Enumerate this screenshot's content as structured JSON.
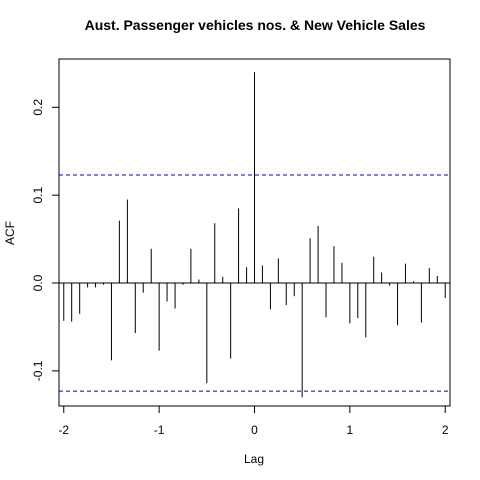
{
  "chart_data": {
    "type": "bar",
    "title": "Aust. Passenger vehicles nos. & New Vehicle Sales",
    "xlabel": "Lag",
    "ylabel": "ACF",
    "xlim": [
      -2.05,
      2.05
    ],
    "ylim": [
      -0.14,
      0.255
    ],
    "x_ticks": [
      -2,
      -1,
      0,
      1,
      2
    ],
    "y_ticks": [
      -0.1,
      0.0,
      0.1,
      0.2
    ],
    "x_tick_labels": [
      "-2",
      "-1",
      "0",
      "1",
      "2"
    ],
    "y_tick_labels": [
      "-0.1",
      "0.0",
      "0.1",
      "0.2"
    ],
    "confidence_limit": 0.123,
    "confidence_color": "#0000cc",
    "grid": false,
    "series": [
      {
        "x": [
          -2.0,
          -1.917,
          -1.833,
          -1.75,
          -1.667,
          -1.583,
          -1.5,
          -1.417,
          -1.333,
          -1.25,
          -1.167,
          -1.083,
          -1.0,
          -0.917,
          -0.833,
          -0.75,
          -0.667,
          -0.583,
          -0.5,
          -0.417,
          -0.333,
          -0.25,
          -0.167,
          -0.083,
          0.0,
          0.083,
          0.167,
          0.25,
          0.333,
          0.417,
          0.5,
          0.583,
          0.667,
          0.75,
          0.833,
          0.917,
          1.0,
          1.083,
          1.167,
          1.25,
          1.333,
          1.417,
          1.5,
          1.583,
          1.667,
          1.75,
          1.833,
          1.917,
          2.0
        ],
        "values": [
          -0.043,
          -0.044,
          -0.035,
          -0.005,
          -0.005,
          -0.002,
          -0.088,
          0.071,
          0.095,
          -0.057,
          -0.011,
          0.039,
          -0.077,
          -0.021,
          -0.029,
          -0.002,
          0.039,
          0.004,
          -0.114,
          0.068,
          0.007,
          -0.086,
          0.085,
          0.018,
          0.24,
          0.02,
          -0.03,
          0.028,
          -0.025,
          -0.015,
          -0.13,
          0.051,
          0.065,
          -0.039,
          0.042,
          0.023,
          -0.046,
          -0.04,
          -0.062,
          0.03,
          0.012,
          -0.003,
          -0.048,
          0.022,
          0.002,
          -0.045,
          0.017,
          0.008,
          -0.017
        ]
      }
    ]
  }
}
